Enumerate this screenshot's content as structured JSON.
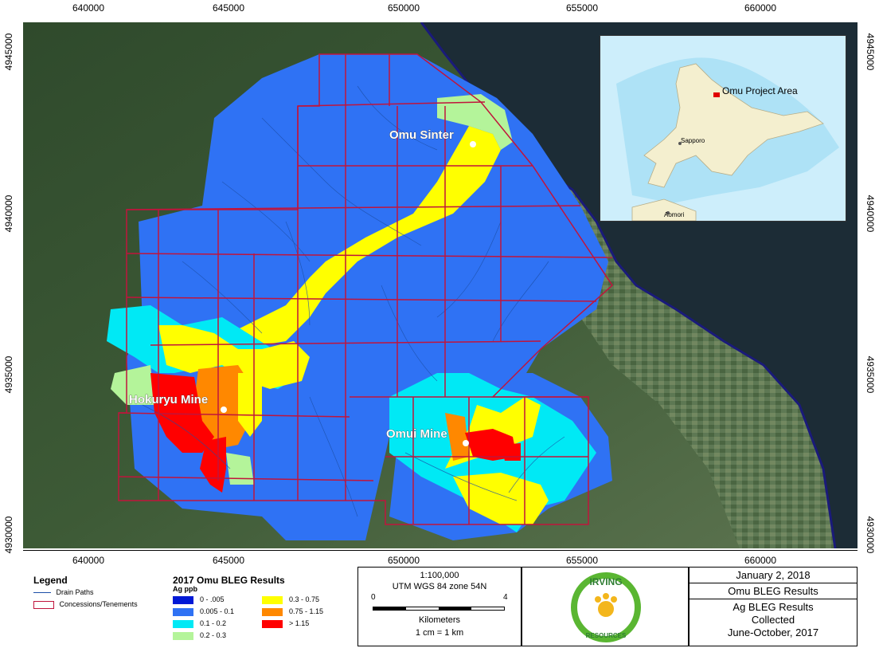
{
  "axes": {
    "x_ticks": [
      "640000",
      "645000",
      "650000",
      "655000",
      "660000"
    ],
    "y_ticks": [
      "4945000",
      "4940000",
      "4935000",
      "4930000"
    ]
  },
  "map": {
    "sites": [
      {
        "name": "Omu Sinter"
      },
      {
        "name": "Hokuryu Mine"
      },
      {
        "name": "Omui Mine"
      }
    ]
  },
  "inset": {
    "project_label": "Omu Project Area",
    "city1": "Sapporo",
    "city2": "Aomori"
  },
  "legend": {
    "title": "Legend",
    "drain": "Drain Paths",
    "concessions": "Concessions/Tenements"
  },
  "results": {
    "title": "2017 Omu BLEG Results",
    "unit": "Ag ppb",
    "classes": [
      {
        "label": "0 - .005",
        "color": "#0019d6"
      },
      {
        "label": "0.005 - 0.1",
        "color": "#2f72f4"
      },
      {
        "label": "0.1 - 0.2",
        "color": "#00e9f5"
      },
      {
        "label": "0.2 - 0.3",
        "color": "#b4f49a"
      },
      {
        "label": "0.3 - 0.75",
        "color": "#ffff00"
      },
      {
        "label": "0.75 - 1.15",
        "color": "#ff8800"
      },
      {
        "label": "> 1.15",
        "color": "#ff0000"
      }
    ]
  },
  "scale": {
    "ratio": "1:100,000",
    "crs": "UTM WGS 84 zone 54N",
    "min": "0",
    "max": "4",
    "units": "Kilometers",
    "conversion": "1 cm = 1 km"
  },
  "logo": {
    "word1": "IRVING",
    "word2": "RESOURCES"
  },
  "info": {
    "date": "January 2, 2018",
    "title": "Omu BLEG Results",
    "line1": "Ag BLEG Results",
    "line2": "Collected",
    "line3": "June-October, 2017"
  },
  "colors": {
    "concession_outline": "#c0143c",
    "drain": "#1c4fa8",
    "coastline": "#1a1a7a",
    "terrain_dark": "#1f3320",
    "terrain_mid": "#3f5a3a",
    "sea": "#1f2f3a"
  }
}
